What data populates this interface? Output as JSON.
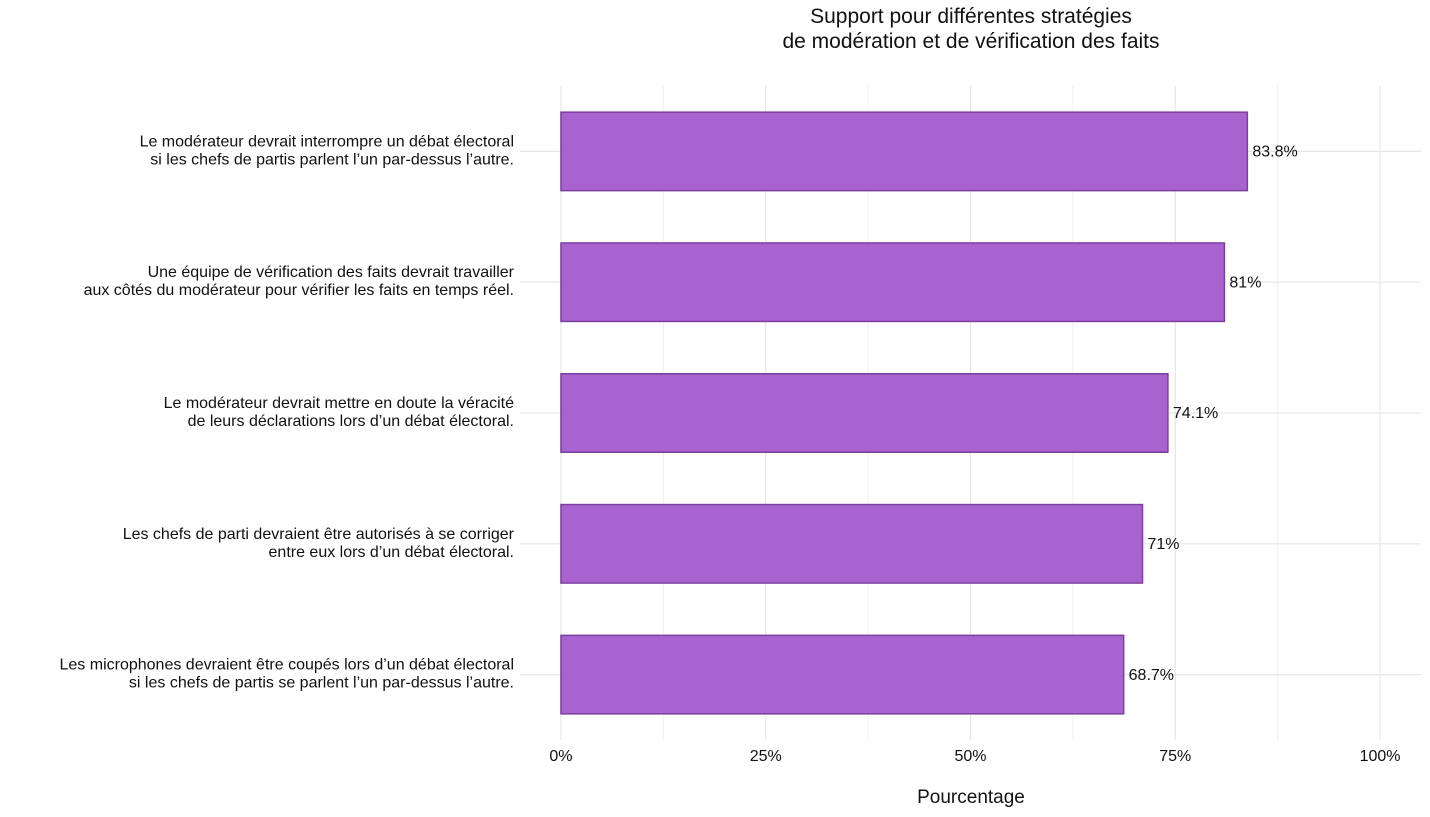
{
  "chart_data": {
    "type": "barh",
    "title": "Support pour différentes stratégies\nde modération et de vérification des faits",
    "xlabel": "Pourcentage",
    "categories": [
      "Le modérateur devrait interrompre un débat électoral\nsi les chefs de partis parlent l’un par-dessus l’autre.",
      "Une équipe de vérification des faits devrait travailler\naux côtés du modérateur pour vérifier les faits en temps réel.",
      "Le modérateur devrait mettre en doute la véracité\nde leurs déclarations lors d’un débat électoral.",
      "Les chefs de parti devraient être autorisés à se corriger\nentre eux lors d’un débat électoral.",
      "Les microphones devraient être coupés lors d’un débat électoral\nsi les chefs de partis se parlent l’un par-dessus l’autre."
    ],
    "values": [
      83.8,
      81,
      74.1,
      71,
      68.7
    ],
    "value_labels": [
      "83.8%",
      "81%",
      "74.1%",
      "71%",
      "68.7%"
    ],
    "color": "#a963cf",
    "edgecolor": "#7d3f9f",
    "xlim": [
      -5,
      105
    ],
    "xticks": [
      {
        "value": 0,
        "label": "0%"
      },
      {
        "value": 25,
        "label": "25%"
      },
      {
        "value": 50,
        "label": "50%"
      },
      {
        "value": 75,
        "label": "75%"
      },
      {
        "value": 100,
        "label": "100%"
      }
    ],
    "xminor": [
      12.5,
      37.5,
      62.5,
      87.5
    ],
    "grid": true
  }
}
